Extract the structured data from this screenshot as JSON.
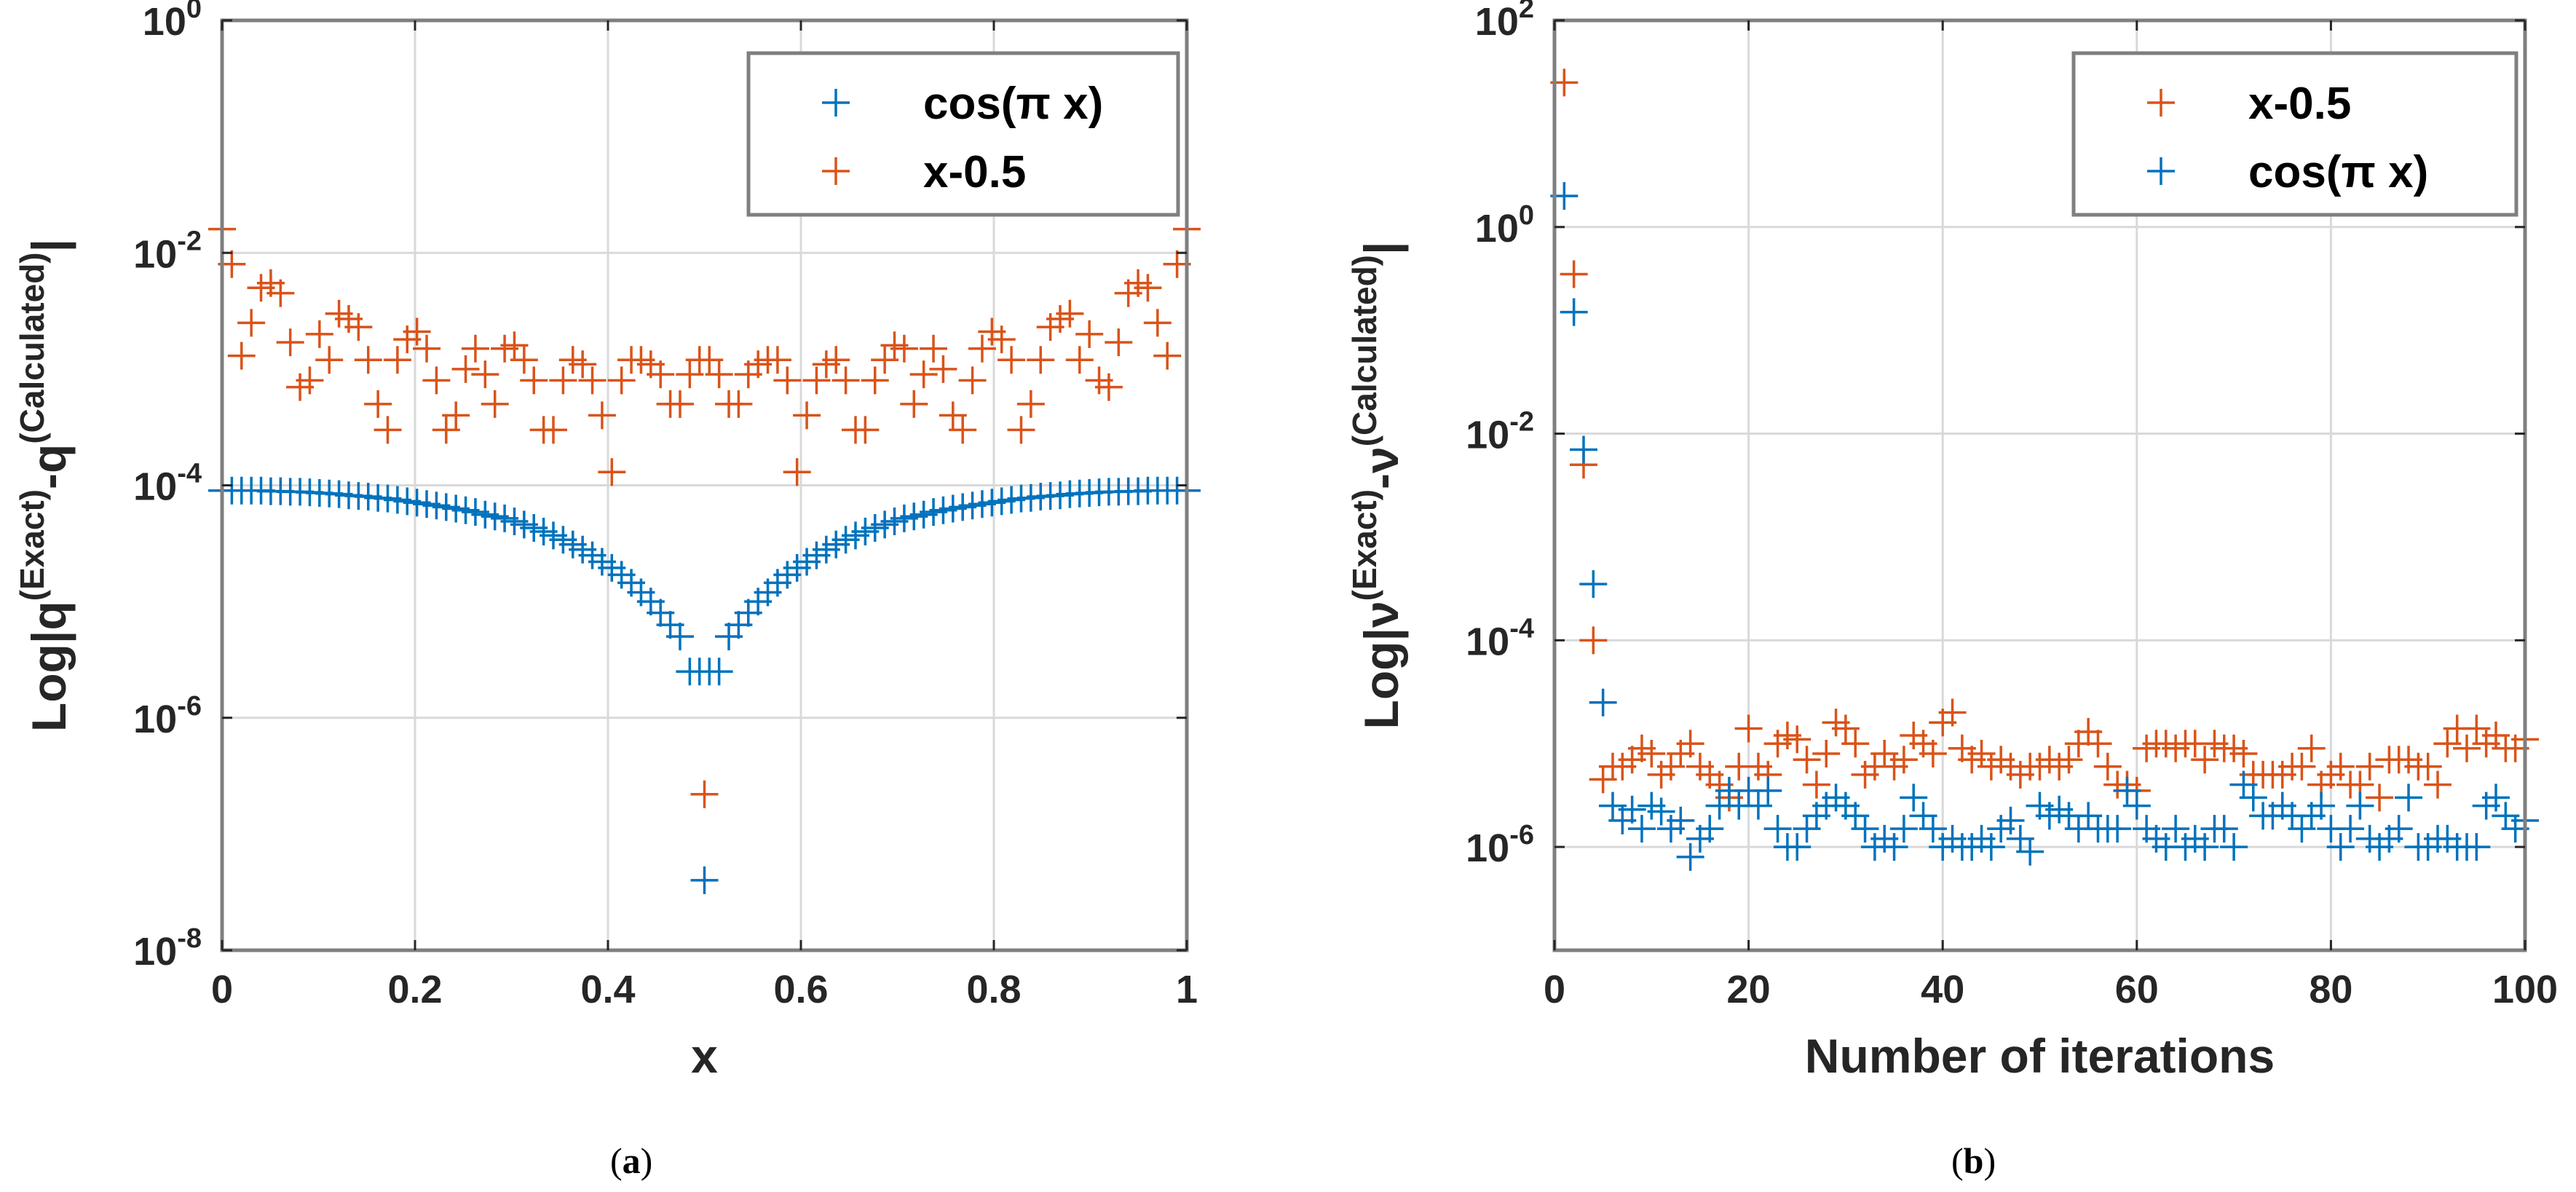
{
  "colors": {
    "blue": "#0072BD",
    "orange": "#D95319",
    "axis": "#262626",
    "grid": "#d9d9d9",
    "box": "#7f7f7f"
  },
  "chart_data": [
    {
      "type": "scatter",
      "yscale": "log",
      "marker": "+",
      "xlabel": "x",
      "ylabel": "Log|q(Exact)-q(Calculated)|",
      "ylabel_base": "Log|q",
      "ylabel_sup1": "(Exact)",
      "ylabel_mid": "-q",
      "ylabel_sup2": "(Calculated)",
      "ylabel_end": "|",
      "xlim": [
        0,
        1
      ],
      "ylim_exp": [
        -8,
        0
      ],
      "xticks": [
        0,
        0.2,
        0.4,
        0.6,
        0.8,
        1
      ],
      "xtick_labels": [
        "0",
        "0.2",
        "0.4",
        "0.6",
        "0.8",
        "1"
      ],
      "ytick_exps": [
        -8,
        -6,
        -4,
        -2,
        0
      ],
      "ytick_base": "10",
      "ytick_exp_labels": [
        "-8",
        "-6",
        "-4",
        "-2",
        "0"
      ],
      "grid": true,
      "legend_position": "top-right",
      "legend": [
        "cos(π x)",
        "x-0.5"
      ],
      "caption": "(a)",
      "caption_letter": "a",
      "series": [
        {
          "name": "cos(π x)",
          "color": "#0072BD",
          "x": [
            0,
            0.0101,
            0.0202,
            0.0303,
            0.0404,
            0.0505,
            0.0606,
            0.0707,
            0.0808,
            0.0909,
            0.101,
            0.1111,
            0.1212,
            0.1313,
            0.1414,
            0.1515,
            0.1616,
            0.1717,
            0.1818,
            0.1919,
            0.202,
            0.2121,
            0.2222,
            0.2323,
            0.2424,
            0.2525,
            0.2626,
            0.2727,
            0.2828,
            0.2929,
            0.303,
            0.3131,
            0.3232,
            0.3333,
            0.3434,
            0.3535,
            0.3636,
            0.3737,
            0.3838,
            0.3939,
            0.404,
            0.4141,
            0.4242,
            0.4343,
            0.4444,
            0.4545,
            0.4646,
            0.4747,
            0.4848,
            0.4949,
            0.5,
            0.5051,
            0.5152,
            0.5253,
            0.5354,
            0.5455,
            0.5556,
            0.5657,
            0.5758,
            0.5859,
            0.596,
            0.6061,
            0.6162,
            0.6263,
            0.6364,
            0.6465,
            0.6566,
            0.6667,
            0.6768,
            0.6869,
            0.697,
            0.7071,
            0.7172,
            0.7273,
            0.7374,
            0.7475,
            0.7576,
            0.7677,
            0.7778,
            0.7879,
            0.798,
            0.8081,
            0.8182,
            0.8283,
            0.8384,
            0.8485,
            0.8586,
            0.8687,
            0.8788,
            0.8889,
            0.899,
            0.9091,
            0.9192,
            0.9293,
            0.9394,
            0.9495,
            0.9596,
            0.9697,
            0.9798,
            0.9899,
            1
          ],
          "y": [
            9e-05,
            9e-05,
            9e-05,
            9e-05,
            9e-05,
            8.9e-05,
            8.9e-05,
            8.8e-05,
            8.8e-05,
            8.7e-05,
            8.6e-05,
            8.5e-05,
            8.4e-05,
            8.2e-05,
            8.1e-05,
            8e-05,
            7.8e-05,
            7.7e-05,
            7.5e-05,
            7.3e-05,
            7.1e-05,
            6.9e-05,
            6.7e-05,
            6.5e-05,
            6.3e-05,
            6.1e-05,
            5.9e-05,
            5.6e-05,
            5.4e-05,
            5.2e-05,
            4.9e-05,
            4.6e-05,
            4.3e-05,
            4e-05,
            3.7e-05,
            3.4e-05,
            3.1e-05,
            2.8e-05,
            2.5e-05,
            2.2e-05,
            1.95e-05,
            1.7e-05,
            1.45e-05,
            1.2e-05,
            1e-05,
            8e-06,
            6.3e-06,
            5e-06,
            2.5e-06,
            2.5e-06,
            4e-08,
            2.5e-06,
            2.5e-06,
            5e-06,
            6.3e-06,
            8e-06,
            1e-05,
            1.2e-05,
            1.45e-05,
            1.7e-05,
            1.95e-05,
            2.2e-05,
            2.5e-05,
            2.8e-05,
            3.1e-05,
            3.4e-05,
            3.7e-05,
            4e-05,
            4.3e-05,
            4.6e-05,
            4.9e-05,
            5.2e-05,
            5.4e-05,
            5.6e-05,
            5.9e-05,
            6.1e-05,
            6.3e-05,
            6.5e-05,
            6.7e-05,
            6.9e-05,
            7.1e-05,
            7.3e-05,
            7.5e-05,
            7.7e-05,
            7.8e-05,
            8e-05,
            8.1e-05,
            8.2e-05,
            8.4e-05,
            8.5e-05,
            8.6e-05,
            8.7e-05,
            8.8e-05,
            8.8e-05,
            8.9e-05,
            8.9e-05,
            9e-05,
            9e-05,
            9e-05,
            9e-05,
            9e-05
          ]
        },
        {
          "name": "x-0.5",
          "color": "#D95319",
          "x": [
            0,
            0.0101,
            0.0202,
            0.0303,
            0.0404,
            0.0505,
            0.0606,
            0.0707,
            0.0808,
            0.0909,
            0.101,
            0.1111,
            0.1212,
            0.1313,
            0.1414,
            0.1515,
            0.1616,
            0.1717,
            0.1818,
            0.1919,
            0.202,
            0.2121,
            0.2222,
            0.2323,
            0.2424,
            0.2525,
            0.2626,
            0.2727,
            0.2828,
            0.2929,
            0.303,
            0.3131,
            0.3232,
            0.3333,
            0.3434,
            0.3535,
            0.3636,
            0.3737,
            0.3838,
            0.3939,
            0.404,
            0.4141,
            0.4242,
            0.4343,
            0.4444,
            0.4545,
            0.4646,
            0.4747,
            0.4848,
            0.4949,
            0.5,
            0.5051,
            0.5152,
            0.5253,
            0.5354,
            0.5455,
            0.5556,
            0.5657,
            0.5758,
            0.5859,
            0.596,
            0.6061,
            0.6162,
            0.6263,
            0.6364,
            0.6465,
            0.6566,
            0.6667,
            0.6768,
            0.6869,
            0.697,
            0.7071,
            0.7172,
            0.7273,
            0.7374,
            0.7475,
            0.7576,
            0.7677,
            0.7778,
            0.7879,
            0.798,
            0.8081,
            0.8182,
            0.8283,
            0.8384,
            0.8485,
            0.8586,
            0.8687,
            0.8788,
            0.8889,
            0.899,
            0.9091,
            0.9192,
            0.9293,
            0.9394,
            0.9495,
            0.9596,
            0.9697,
            0.9798,
            0.9899,
            1
          ],
          "y": [
            0.016,
            0.008,
            0.0013,
            0.0025,
            0.005,
            0.0055,
            0.0045,
            0.0017,
            0.0007,
            0.0008,
            0.002,
            0.0012,
            0.003,
            0.0027,
            0.0023,
            0.0012,
            0.0005,
            0.0003,
            0.0012,
            0.0018,
            0.0021,
            0.0015,
            0.0008,
            0.0003,
            0.0004,
            0.001,
            0.0015,
            0.0009,
            0.0005,
            0.0015,
            0.0016,
            0.0012,
            0.0008,
            0.0003,
            0.0003,
            0.0008,
            0.0012,
            0.0011,
            0.0008,
            0.0004,
            0.00013,
            0.0008,
            0.0012,
            0.0012,
            0.0011,
            0.0009,
            0.0005,
            0.0005,
            0.0009,
            0.0012,
            2.2e-07,
            0.0012,
            0.0009,
            0.0005,
            0.0005,
            0.0009,
            0.0011,
            0.0012,
            0.0012,
            0.0008,
            0.00013,
            0.0004,
            0.0008,
            0.0011,
            0.0012,
            0.0008,
            0.0003,
            0.0003,
            0.0008,
            0.0012,
            0.0016,
            0.0015,
            0.0005,
            0.0009,
            0.0015,
            0.001,
            0.0004,
            0.0003,
            0.0008,
            0.0015,
            0.0021,
            0.0018,
            0.0012,
            0.0003,
            0.0005,
            0.0012,
            0.0023,
            0.0027,
            0.003,
            0.0012,
            0.002,
            0.0008,
            0.0007,
            0.0017,
            0.0045,
            0.0055,
            0.005,
            0.0025,
            0.0013,
            0.008,
            0.016
          ]
        }
      ]
    },
    {
      "type": "scatter",
      "yscale": "log",
      "marker": "+",
      "xlabel": "Number of iterations",
      "ylabel": "Log|ν(Exact)-ν(Calculated)|",
      "ylabel_base": "Log|ν",
      "ylabel_sup1": "(Exact)",
      "ylabel_mid": "-ν",
      "ylabel_sup2": "(Calculated)",
      "ylabel_end": "|",
      "xlim": [
        0,
        100
      ],
      "ylim_exp": [
        -7,
        2
      ],
      "xticks": [
        0,
        20,
        40,
        60,
        80,
        100
      ],
      "xtick_labels": [
        "0",
        "20",
        "40",
        "60",
        "80",
        "100"
      ],
      "ytick_exps": [
        -6,
        -4,
        -2,
        0,
        2
      ],
      "ytick_base": "10",
      "ytick_exp_labels": [
        "-6",
        "-4",
        "-2",
        "0",
        "2"
      ],
      "grid": true,
      "legend_position": "top-right",
      "legend": [
        "x-0.5",
        "cos(π x)"
      ],
      "caption": "(b)",
      "caption_letter": "b",
      "series": [
        {
          "name": "x-0.5",
          "color": "#D95319",
          "x": [
            1,
            2,
            3,
            4,
            5,
            6,
            7,
            8,
            9,
            10,
            11,
            12,
            13,
            14,
            15,
            16,
            17,
            18,
            19,
            20,
            21,
            22,
            23,
            24,
            25,
            26,
            27,
            28,
            29,
            30,
            31,
            32,
            33,
            34,
            35,
            36,
            37,
            38,
            39,
            40,
            41,
            42,
            43,
            44,
            45,
            46,
            47,
            48,
            49,
            50,
            51,
            52,
            53,
            54,
            55,
            56,
            57,
            58,
            59,
            60,
            61,
            62,
            63,
            64,
            65,
            66,
            67,
            68,
            69,
            70,
            71,
            72,
            73,
            74,
            75,
            76,
            77,
            78,
            79,
            80,
            81,
            82,
            83,
            84,
            85,
            86,
            87,
            88,
            89,
            90,
            91,
            92,
            93,
            94,
            95,
            96,
            97,
            98,
            99,
            100
          ],
          "y": [
            25,
            0.35,
            0.005,
            0.0001,
            4.5e-06,
            6e-06,
            6e-06,
            7e-06,
            9e-06,
            8e-06,
            5e-06,
            6e-06,
            8e-06,
            1e-05,
            6e-06,
            5e-06,
            4e-06,
            3e-06,
            6e-06,
            1.4e-05,
            6e-06,
            5e-06,
            1e-05,
            1.2e-05,
            1.1e-05,
            7e-06,
            4e-06,
            8e-06,
            1.6e-05,
            1.4e-05,
            1e-05,
            5e-06,
            6e-06,
            8e-06,
            6e-06,
            7e-06,
            1.2e-05,
            1e-05,
            8e-06,
            1.6e-05,
            2e-05,
            9e-06,
            7e-06,
            8e-06,
            6e-06,
            7e-06,
            6e-06,
            5e-06,
            6e-06,
            6e-06,
            7e-06,
            6e-06,
            7e-06,
            1e-05,
            1.3e-05,
            1e-05,
            6e-06,
            4e-06,
            4e-06,
            3.5e-06,
            9e-06,
            1e-05,
            1e-05,
            9e-06,
            1e-05,
            1e-05,
            7e-06,
            1e-05,
            9e-06,
            9e-06,
            8e-06,
            5e-06,
            5e-06,
            5e-06,
            5e-06,
            6e-06,
            6e-06,
            9e-06,
            4e-06,
            5e-06,
            6e-06,
            4e-06,
            4e-06,
            6e-06,
            3e-06,
            7e-06,
            7e-06,
            7e-06,
            6e-06,
            6e-06,
            4e-06,
            1e-05,
            1.4e-05,
            9e-06,
            1.4e-05,
            1e-05,
            1.2e-05,
            9e-06,
            9e-06,
            1.1e-05
          ]
        },
        {
          "name": "cos(π x)",
          "color": "#0072BD",
          "x": [
            1,
            2,
            3,
            4,
            5,
            6,
            7,
            8,
            9,
            10,
            11,
            12,
            13,
            14,
            15,
            16,
            17,
            18,
            19,
            20,
            21,
            22,
            23,
            24,
            25,
            26,
            27,
            28,
            29,
            30,
            31,
            32,
            33,
            34,
            35,
            36,
            37,
            38,
            39,
            40,
            41,
            42,
            43,
            44,
            45,
            46,
            47,
            48,
            49,
            50,
            51,
            52,
            53,
            54,
            55,
            56,
            57,
            58,
            59,
            60,
            61,
            62,
            63,
            64,
            65,
            66,
            67,
            68,
            69,
            70,
            71,
            72,
            73,
            74,
            75,
            76,
            77,
            78,
            79,
            80,
            81,
            82,
            83,
            84,
            85,
            86,
            87,
            88,
            89,
            90,
            91,
            92,
            93,
            94,
            95,
            96,
            97,
            98,
            99,
            100
          ],
          "y": [
            2.0,
            0.15,
            0.007,
            0.00035,
            2.5e-05,
            2.5e-06,
            1.8e-06,
            2.3e-06,
            1.5e-06,
            2.5e-06,
            2.2e-06,
            1.5e-06,
            1.8e-06,
            8e-07,
            1.2e-06,
            1.5e-06,
            2.5e-06,
            3.5e-06,
            2.5e-06,
            3.5e-06,
            2.5e-06,
            3.5e-06,
            1.5e-06,
            1e-06,
            1e-06,
            1.5e-06,
            2e-06,
            2.5e-06,
            3e-06,
            2.5e-06,
            2e-06,
            1.5e-06,
            1e-06,
            1.2e-06,
            1e-06,
            1.5e-06,
            3e-06,
            2e-06,
            1.5e-06,
            1e-06,
            1.2e-06,
            1e-06,
            1e-06,
            1.2e-06,
            1e-06,
            1.5e-06,
            1.8e-06,
            1.2e-06,
            9e-07,
            2.5e-06,
            2e-06,
            2.3e-06,
            2e-06,
            1.5e-06,
            2e-06,
            1.5e-06,
            1.5e-06,
            1.5e-06,
            3.5e-06,
            2.5e-06,
            1.5e-06,
            1.2e-06,
            1e-06,
            1.5e-06,
            1e-06,
            1.2e-06,
            1e-06,
            1.5e-06,
            1.5e-06,
            1e-06,
            4e-06,
            3e-06,
            2e-06,
            2e-06,
            2.5e-06,
            2e-06,
            1.5e-06,
            2e-06,
            2.5e-06,
            1.5e-06,
            1e-06,
            1.5e-06,
            2.5e-06,
            1.2e-06,
            1e-06,
            1.2e-06,
            1.5e-06,
            3e-06,
            1e-06,
            1e-06,
            1.2e-06,
            1.2e-06,
            1e-06,
            1e-06,
            1e-06,
            2.5e-06,
            3e-06,
            2e-06,
            1.5e-06,
            1.8e-06
          ]
        }
      ]
    }
  ]
}
